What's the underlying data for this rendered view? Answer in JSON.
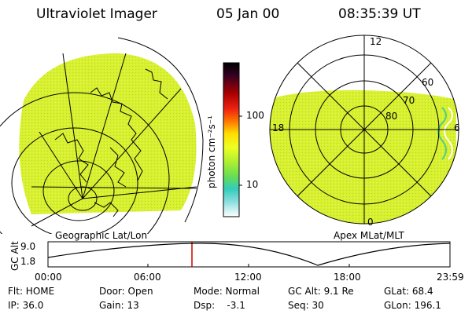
{
  "header": {
    "title": "Ultraviolet Imager",
    "date": "05 Jan 00",
    "time": "08:35:39 UT"
  },
  "left_panel": {
    "caption": "Geographic Lat/Lon"
  },
  "right_panel": {
    "caption": "Apex MLat/MLT",
    "mlt_labels": {
      "top": "12",
      "left": "18",
      "right": "6",
      "bottom": "0"
    },
    "lat_labels": [
      "60",
      "70",
      "80"
    ]
  },
  "colorbar": {
    "unit": "photon cm⁻²s⁻¹",
    "tick_labels": [
      "100",
      "10"
    ],
    "colors": [
      "#000000",
      "#330022",
      "#660000",
      "#aa0000",
      "#ee2211",
      "#ff7700",
      "#ffaa00",
      "#ffdd00",
      "#eeff22",
      "#aaee33",
      "#66dd55",
      "#33ccbb",
      "#88dddd",
      "#cceeee",
      "#ffffff"
    ]
  },
  "timeline": {
    "ylabel": "GC Alt",
    "yticks": [
      "9.0",
      "1.8"
    ],
    "xticks": [
      "00:00",
      "06:00",
      "12:00",
      "18:00",
      "23:59"
    ],
    "marker_time": "08:35:39"
  },
  "info_rows": [
    {
      "flt": "Flt: HOME",
      "door": "Door: Open",
      "mode": "Mode: Normal",
      "gcalt": "GC Alt: 9.1 Re",
      "glat": "GLat: 68.4"
    },
    {
      "ip": "IP: 36.0",
      "gain": "Gain: 13",
      "dsp": "Dsp:    -3.1",
      "seq": "Seq: 30",
      "glon": "GLon: 196.1"
    }
  ],
  "image_colors": {
    "fill": "#d8f030",
    "stipple": "#b0e020",
    "edge": "#55cc88"
  }
}
